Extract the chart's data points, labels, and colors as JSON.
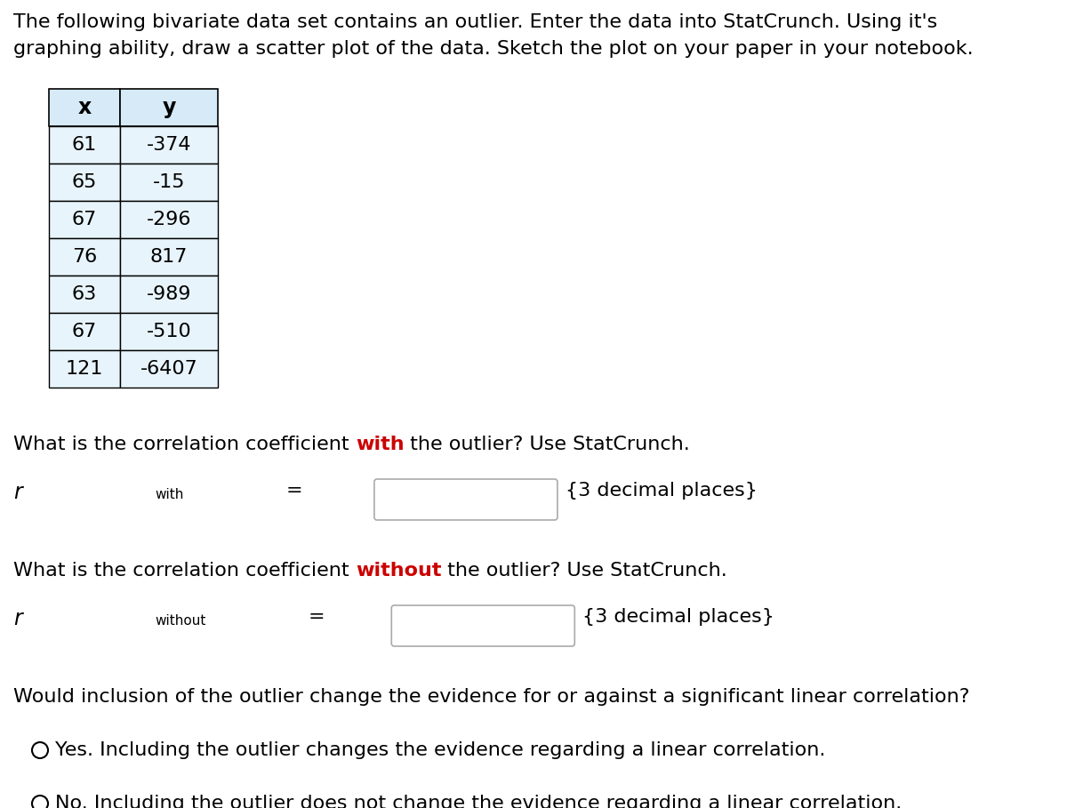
{
  "title_line1": "The following bivariate data set contains an outlier. Enter the data into StatCrunch. Using it's",
  "title_line2": "graphing ability, draw a scatter plot of the data. Sketch the plot on your paper in your notebook.",
  "table_headers": [
    "x",
    "y"
  ],
  "table_data": [
    [
      61,
      -374
    ],
    [
      65,
      -15
    ],
    [
      67,
      -296
    ],
    [
      76,
      817
    ],
    [
      63,
      -989
    ],
    [
      67,
      -510
    ],
    [
      121,
      -6407
    ]
  ],
  "table_header_bg": "#d6eaf8",
  "table_row_bg": "#e8f4fb",
  "table_border_color": "#000000",
  "q1_text_before": "What is the correlation coefficient ",
  "q1_highlight": "with",
  "q1_text_after": " the outlier? Use StatCrunch.",
  "q1_highlight_color": "#cc0000",
  "q2_text_before": "What is the correlation coefficient ",
  "q2_highlight": "without",
  "q2_text_after": " the outlier? Use StatCrunch.",
  "q2_highlight_color": "#cc0000",
  "decimal_placeholder": "{3 decimal places}",
  "q3_text": "Would inclusion of the outlier change the evidence for or against a significant linear correlation?",
  "option1": "Yes. Including the outlier changes the evidence regarding a linear correlation.",
  "option2": "No. Including the outlier does not change the evidence regarding a linear correlation.",
  "bg_color": "#ffffff",
  "text_color": "#000000",
  "font_size_main": 16,
  "font_size_table": 16
}
